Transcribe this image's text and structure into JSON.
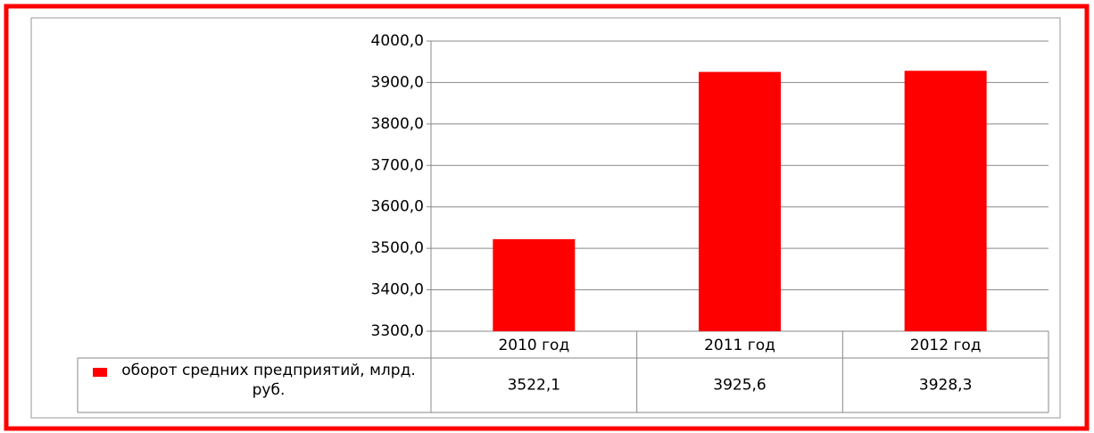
{
  "chart_data": {
    "type": "bar",
    "categories": [
      "2010 год",
      "2011 год",
      "2012 год"
    ],
    "series": [
      {
        "name": "оборот средних предприятий, млрд. руб.",
        "color": "#ff0000",
        "values": [
          3522.1,
          3925.6,
          3928.3
        ],
        "value_labels": [
          "3522,1",
          "3925,6",
          "3928,3"
        ]
      }
    ],
    "ylim": [
      3300,
      4000
    ],
    "yticks": [
      {
        "value": 3300,
        "label": "3300,0"
      },
      {
        "value": 3400,
        "label": "3400,0"
      },
      {
        "value": 3500,
        "label": "3500,0"
      },
      {
        "value": 3600,
        "label": "3600,0"
      },
      {
        "value": 3700,
        "label": "3700,0"
      },
      {
        "value": 3800,
        "label": "3800,0"
      },
      {
        "value": 3900,
        "label": "3900,0"
      },
      {
        "value": 4000,
        "label": "4000,0"
      }
    ],
    "grid": true
  }
}
